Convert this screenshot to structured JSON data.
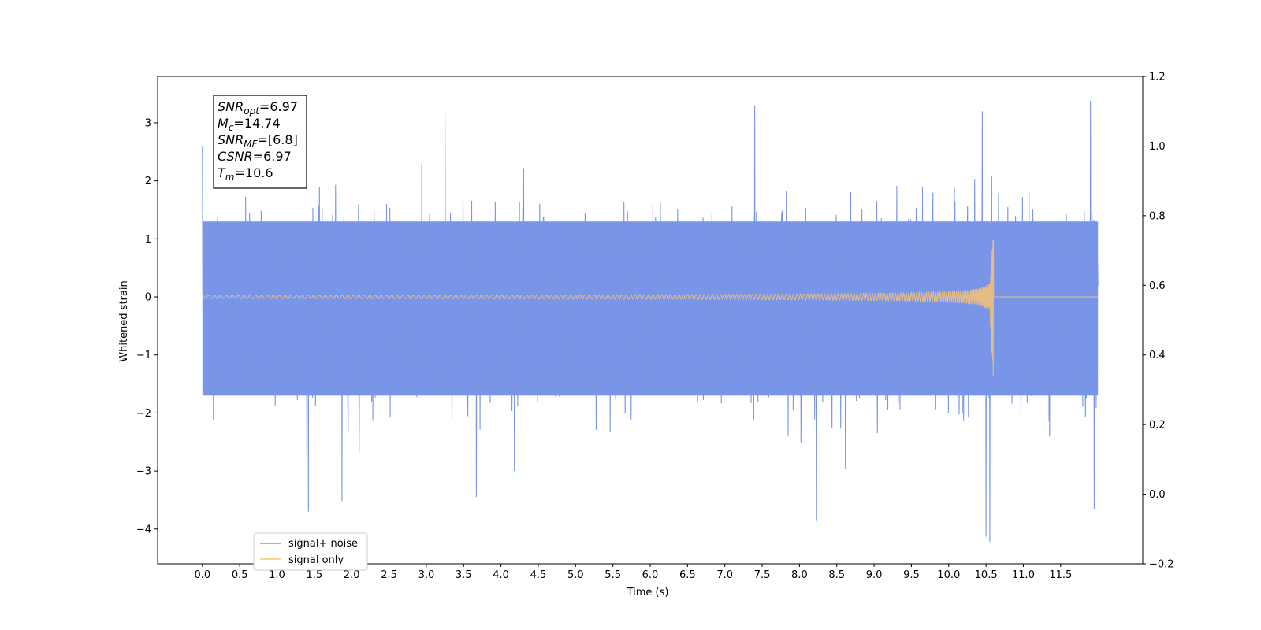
{
  "chart_data": {
    "type": "line",
    "title": "",
    "xlabel": "Time (s)",
    "ylabel": "Whitened strain",
    "xlim": [
      -0.6,
      12.6
    ],
    "ylim": [
      -4.6,
      3.8
    ],
    "y2lim": [
      -0.2,
      1.2
    ],
    "x_ticks": [
      "0.0",
      "0.5",
      "1.0",
      "1.5",
      "2.0",
      "2.5",
      "3.0",
      "3.5",
      "4.0",
      "4.5",
      "5.0",
      "5.5",
      "6.0",
      "6.5",
      "7.0",
      "7.5",
      "8.0",
      "8.5",
      "9.0",
      "9.5",
      "10.0",
      "10.5",
      "11.0",
      "11.5"
    ],
    "y_ticks": [
      "3",
      "2",
      "1",
      "0",
      "−1",
      "−2",
      "−3",
      "−4"
    ],
    "y2_ticks": [
      "1.2",
      "1.0",
      "0.8",
      "0.6",
      "0.4",
      "0.2",
      "0.0",
      "−0.2"
    ],
    "grid": false,
    "legend_position": "lower-left",
    "series": [
      {
        "name": "signal+ noise",
        "color": "#7895e8",
        "x_range": [
          0.0,
          12.0
        ],
        "noise_band": [
          -1.7,
          1.3
        ],
        "notable_peaks": [
          {
            "x": 0.0,
            "y": 2.6
          },
          {
            "x": 3.25,
            "y": 3.15
          },
          {
            "x": 7.4,
            "y": 3.3
          },
          {
            "x": 10.45,
            "y": 3.2
          },
          {
            "x": 11.9,
            "y": 3.38
          },
          {
            "x": 1.42,
            "y": -3.7
          },
          {
            "x": 1.87,
            "y": -3.52
          },
          {
            "x": 3.67,
            "y": -3.45
          },
          {
            "x": 8.23,
            "y": -3.85
          },
          {
            "x": 10.5,
            "y": -4.13
          },
          {
            "x": 10.55,
            "y": -4.22
          },
          {
            "x": 11.95,
            "y": -3.65
          }
        ]
      },
      {
        "name": "signal only",
        "color": "#ffc66e",
        "x_range": [
          0.0,
          12.0
        ],
        "merger_time": 10.6,
        "peak_amplitude": [
          -1.42,
          1.12
        ],
        "description": "inspiral chirp growing to merger then ringdown to zero"
      }
    ],
    "annotation": {
      "lines": [
        {
          "sym": "SNR",
          "sub": "opt",
          "value": "=6.97"
        },
        {
          "sym": "M",
          "sub": "c",
          "value": "=14.74"
        },
        {
          "sym": "SNR",
          "sub": "MF",
          "value": "=[6.8]"
        },
        {
          "sym": "CSNR",
          "sub": "",
          "value": "=6.97"
        },
        {
          "sym": "T",
          "sub": "m",
          "value": "=10.6"
        }
      ]
    }
  }
}
